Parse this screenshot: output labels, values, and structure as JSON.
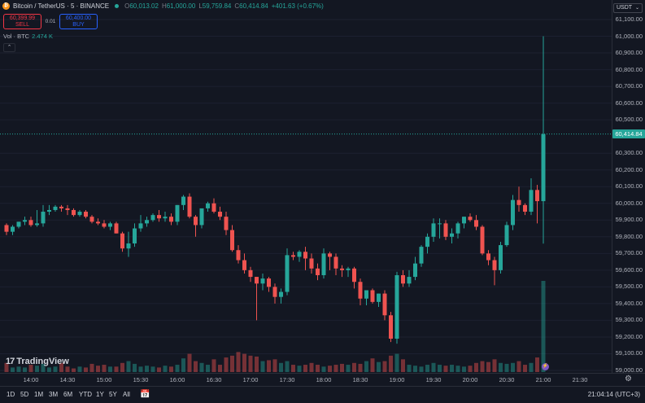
{
  "header": {
    "symbol_title": "Bitcoin / TetherUS · 5 · BINANCE",
    "symbol_icon": "bitcoin-icon",
    "open_label": "O",
    "open_value": "60,013.02",
    "high_label": "H",
    "high_value": "61,000.00",
    "low_label": "L",
    "low_value": "59,759.84",
    "close_label": "C",
    "close_value": "60,414.84",
    "change": "+401.63 (+0.67%)"
  },
  "trade": {
    "sell_price": "60,399.99",
    "sell_label": "SELL",
    "spread": "0.01",
    "buy_price": "60,400.00",
    "buy_label": "BUY"
  },
  "volume": {
    "label": "Vol · BTC",
    "value": "2.474 K"
  },
  "collapse_icon": "chevron-up-icon",
  "currency": "USDT",
  "last_price": "60,414.84",
  "price_ticks": [
    "61,100.00",
    "61,000.00",
    "60,900.00",
    "60,800.00",
    "60,700.00",
    "60,600.00",
    "60,500.00",
    "60,300.00",
    "60,200.00",
    "60,100.00",
    "60,000.00",
    "59,900.00",
    "59,800.00",
    "59,700.00",
    "59,600.00",
    "59,500.00",
    "59,400.00",
    "59,300.00",
    "59,200.00",
    "59,100.00",
    "59,000.00"
  ],
  "time_ticks": [
    "14:00",
    "14:30",
    "15:00",
    "15:30",
    "16:00",
    "16:30",
    "17:00",
    "17:30",
    "18:00",
    "18:30",
    "19:00",
    "19:30",
    "20:00",
    "20:30",
    "21:00",
    "21:30"
  ],
  "ranges": [
    "1D",
    "5D",
    "1M",
    "3M",
    "6M",
    "YTD",
    "1Y",
    "5Y",
    "All"
  ],
  "calendar_icon": "calendar-range-icon",
  "clock": "21:04:14 (UTC+3)",
  "settings_icon": "gear-icon",
  "logo_text": "TradingView",
  "colors": {
    "up": "#26a69a",
    "down": "#ef5350",
    "background": "#131722"
  },
  "chart_data": {
    "type": "candlestick",
    "interval": "5",
    "ylim": [
      59000,
      61100
    ],
    "x": [
      "13:40",
      "13:45",
      "13:50",
      "13:55",
      "14:00",
      "14:05",
      "14:10",
      "14:15",
      "14:20",
      "14:25",
      "14:30",
      "14:35",
      "14:40",
      "14:45",
      "14:50",
      "14:55",
      "15:00",
      "15:05",
      "15:10",
      "15:15",
      "15:20",
      "15:25",
      "15:30",
      "15:35",
      "15:40",
      "15:45",
      "15:50",
      "15:55",
      "16:00",
      "16:05",
      "16:10",
      "16:15",
      "16:20",
      "16:25",
      "16:30",
      "16:35",
      "16:40",
      "16:45",
      "16:50",
      "16:55",
      "17:00",
      "17:05",
      "17:10",
      "17:15",
      "17:20",
      "17:25",
      "17:30",
      "17:35",
      "17:40",
      "17:45",
      "17:50",
      "17:55",
      "18:00",
      "18:05",
      "18:10",
      "18:15",
      "18:20",
      "18:25",
      "18:30",
      "18:35",
      "18:40",
      "18:45",
      "18:50",
      "18:55",
      "19:00",
      "19:05",
      "19:10",
      "19:15",
      "19:20",
      "19:25",
      "19:30",
      "19:35",
      "19:40",
      "19:45",
      "19:50",
      "19:55",
      "20:00",
      "20:05",
      "20:10",
      "20:15",
      "20:20",
      "20:25",
      "20:30",
      "20:35",
      "20:40",
      "20:45",
      "20:50",
      "20:55",
      "21:00"
    ],
    "series": [
      {
        "open": [
          59870,
          59830,
          59860,
          59890,
          59900,
          59870,
          59880,
          59950,
          59960,
          59980,
          59970,
          59960,
          59930,
          59950,
          59920,
          59890,
          59880,
          59860,
          59880,
          59820,
          59730,
          59760,
          59850,
          59880,
          59900,
          59930,
          59910,
          59920,
          59890,
          59990,
          60040,
          59920,
          59870,
          59970,
          60000,
          59950,
          59920,
          59840,
          59720,
          59660,
          59600,
          59560,
          59520,
          59550,
          59500,
          59440,
          59470,
          59690,
          59680,
          59710,
          59670,
          59610,
          59570,
          59700,
          59680,
          59610,
          59600,
          59610,
          59530,
          59430,
          59480,
          59410,
          59460,
          59330,
          59190,
          59570,
          59520,
          59560,
          59640,
          59740,
          59800,
          59880,
          59880,
          59800,
          59820,
          59880,
          59920,
          59900,
          59860,
          59700,
          59660,
          59600,
          59750,
          59870,
          60020,
          59990,
          59950,
          60080,
          60013
        ],
        "high": [
          59880,
          59870,
          59890,
          59920,
          59920,
          59960,
          59990,
          59990,
          59990,
          59990,
          59990,
          59970,
          59960,
          59960,
          59930,
          59910,
          59900,
          59890,
          59890,
          59830,
          59830,
          59880,
          59930,
          59920,
          59940,
          59960,
          59950,
          59940,
          59990,
          60050,
          60060,
          59930,
          59960,
          60010,
          60030,
          59980,
          59950,
          59870,
          59750,
          59700,
          59620,
          59560,
          59580,
          59560,
          59520,
          59490,
          59730,
          59710,
          59720,
          59740,
          59700,
          59640,
          59730,
          59710,
          59700,
          59630,
          59620,
          59620,
          59550,
          59480,
          59490,
          59460,
          59480,
          59350,
          59590,
          59600,
          59600,
          59680,
          59750,
          59820,
          59910,
          59910,
          59900,
          59850,
          59890,
          59920,
          59940,
          59930,
          59870,
          59720,
          59680,
          59770,
          59890,
          60050,
          60100,
          60000,
          60150,
          60110,
          61000
        ],
        "low": [
          59810,
          59810,
          59850,
          59870,
          59860,
          59860,
          59860,
          59930,
          59950,
          59950,
          59930,
          59920,
          59920,
          59910,
          59880,
          59870,
          59850,
          59840,
          59820,
          59710,
          59680,
          59740,
          59830,
          59860,
          59890,
          59890,
          59890,
          59870,
          59870,
          59960,
          59910,
          59800,
          59850,
          59950,
          59940,
          59900,
          59810,
          59710,
          59640,
          59580,
          59530,
          59300,
          59480,
          59470,
          59400,
          59400,
          59450,
          59660,
          59650,
          59600,
          59580,
          59540,
          59550,
          59600,
          59570,
          59560,
          59560,
          59490,
          59390,
          59390,
          59400,
          59380,
          59300,
          59170,
          59160,
          59500,
          59500,
          59540,
          59620,
          59700,
          59770,
          59790,
          59780,
          59760,
          59790,
          59850,
          59890,
          59840,
          59690,
          59630,
          59510,
          59580,
          59740,
          59840,
          59950,
          59930,
          59930,
          59880,
          59759
        ],
        "close": [
          59830,
          59860,
          59890,
          59900,
          59870,
          59880,
          59950,
          59960,
          59980,
          59970,
          59960,
          59930,
          59950,
          59920,
          59890,
          59880,
          59860,
          59880,
          59820,
          59730,
          59760,
          59850,
          59880,
          59900,
          59930,
          59910,
          59920,
          59890,
          59990,
          60040,
          59920,
          59870,
          59970,
          60000,
          59950,
          59920,
          59840,
          59720,
          59660,
          59600,
          59560,
          59520,
          59550,
          59500,
          59440,
          59470,
          59690,
          59680,
          59710,
          59670,
          59610,
          59570,
          59700,
          59680,
          59610,
          59600,
          59610,
          59530,
          59430,
          59480,
          59410,
          59460,
          59330,
          59190,
          59570,
          59520,
          59560,
          59640,
          59740,
          59800,
          59880,
          59880,
          59800,
          59820,
          59880,
          59920,
          59900,
          59860,
          59700,
          59660,
          59600,
          59750,
          59870,
          60020,
          59990,
          59950,
          60080,
          60013,
          60414
        ]
      }
    ],
    "volume": [
      0.1,
      0.05,
      0.06,
      0.05,
      0.08,
      0.07,
      0.09,
      0.05,
      0.06,
      0.1,
      0.06,
      0.04,
      0.06,
      0.05,
      0.09,
      0.07,
      0.08,
      0.06,
      0.06,
      0.1,
      0.12,
      0.09,
      0.06,
      0.07,
      0.06,
      0.05,
      0.07,
      0.06,
      0.08,
      0.15,
      0.2,
      0.12,
      0.1,
      0.08,
      0.14,
      0.08,
      0.16,
      0.18,
      0.22,
      0.2,
      0.18,
      0.17,
      0.12,
      0.13,
      0.14,
      0.1,
      0.12,
      0.08,
      0.07,
      0.08,
      0.1,
      0.08,
      0.06,
      0.07,
      0.08,
      0.09,
      0.08,
      0.1,
      0.09,
      0.12,
      0.15,
      0.11,
      0.12,
      0.18,
      0.2,
      0.14,
      0.08,
      0.07,
      0.06,
      0.08,
      0.1,
      0.08,
      0.07,
      0.08,
      0.07,
      0.06,
      0.07,
      0.1,
      0.12,
      0.11,
      0.14,
      0.1,
      0.09,
      0.1,
      0.12,
      0.08,
      0.1,
      0.16,
      1.0
    ]
  }
}
